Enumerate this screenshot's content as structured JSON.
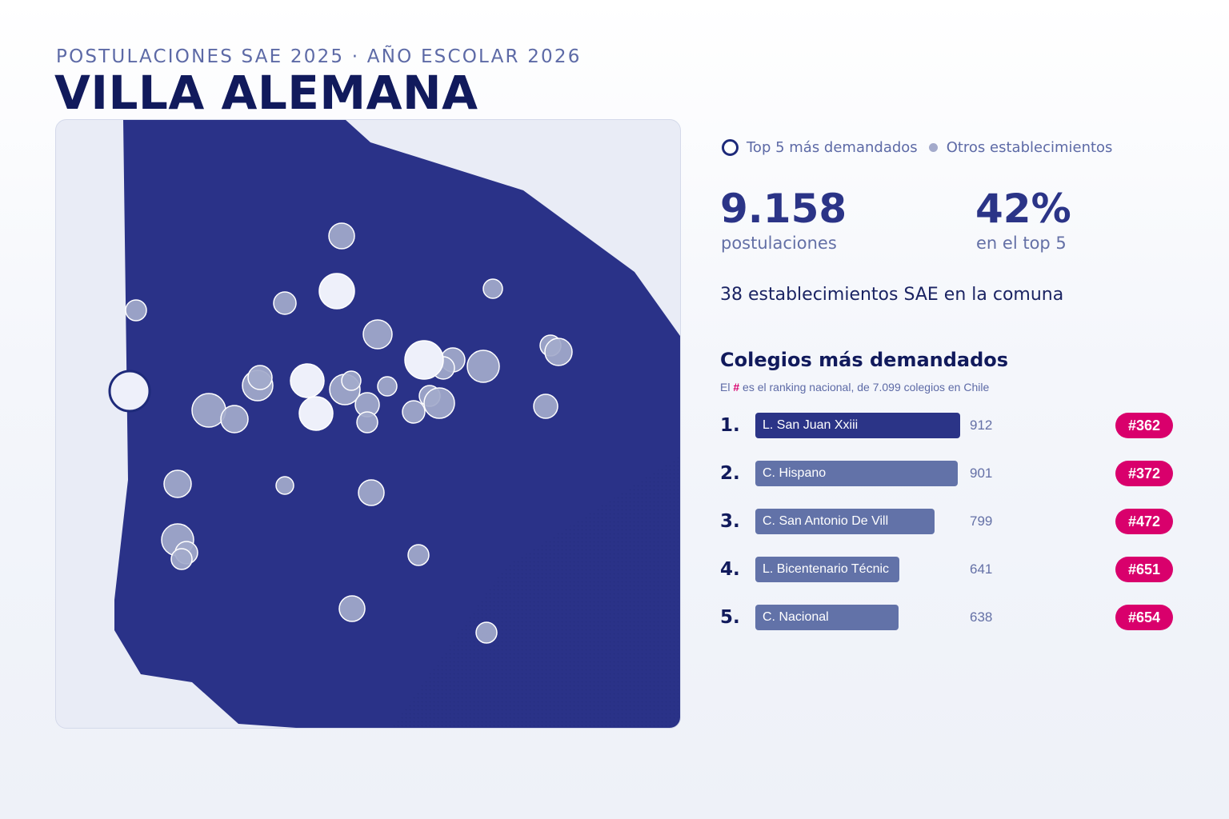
{
  "header": {
    "subtitle": "POSTULACIONES SAE 2025 · AÑO ESCOLAR 2026",
    "title": "VILLA ALEMANA"
  },
  "legend": {
    "top5_label": "Top 5 más demandados",
    "others_label": "Otros establecimientos"
  },
  "stats": {
    "total_value": "9.158",
    "total_label": "postulaciones",
    "top5_share_value": "42%",
    "top5_share_label": "en el top 5",
    "schools_text": "38 establecimientos SAE en la comuna"
  },
  "ranking": {
    "title": "Colegios más demandados",
    "note_prefix": "El",
    "note_hash": "#",
    "note_suffix": "es el ranking nacional, de 7.099 colegios en Chile",
    "items": [
      {
        "rank": "1.",
        "name": "L. San Juan Xxiii",
        "value": 912,
        "national": "#362"
      },
      {
        "rank": "2.",
        "name": "C. Hispano",
        "value": 901,
        "national": "#372"
      },
      {
        "rank": "3.",
        "name": "C. San Antonio De Vill",
        "value": 799,
        "national": "#472"
      },
      {
        "rank": "4.",
        "name": "L. Bicentenario Técnic",
        "value": 641,
        "national": "#651"
      },
      {
        "rank": "5.",
        "name": "C. Nacional",
        "value": 638,
        "national": "#654"
      }
    ]
  },
  "map": {
    "colors": {
      "background": "#e9ecf6",
      "commune": "#2a3288",
      "point_fill": "#a3aacb",
      "point_stroke": "#ffffff",
      "top5_fill": "#eef0fa",
      "top5_stroke": "#1e2a7a",
      "accent": "#d9006c"
    }
  }
}
